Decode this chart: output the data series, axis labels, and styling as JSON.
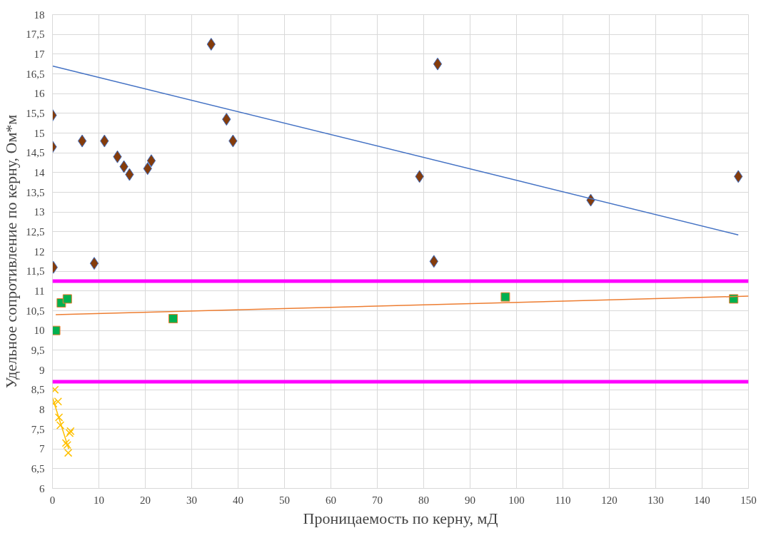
{
  "chart_data": {
    "type": "scatter",
    "xlabel": "Проницаемость по керну, мД",
    "ylabel": "Удельное сопротивление по керну, Ом*м",
    "xlim": [
      0,
      150
    ],
    "ylim": [
      6,
      18
    ],
    "xticks": [
      0,
      10,
      20,
      30,
      40,
      50,
      60,
      70,
      80,
      90,
      100,
      110,
      120,
      130,
      140,
      150
    ],
    "yticks": [
      6,
      {
        "value": 6.5,
        "label": "6,5"
      },
      7,
      {
        "value": 7.5,
        "label": "7,5"
      },
      8,
      {
        "value": 8.5,
        "label": "8,5"
      },
      9,
      {
        "value": 9.5,
        "label": "9,5"
      },
      10,
      {
        "value": 10.5,
        "label": "10,5"
      },
      11,
      {
        "value": 11.5,
        "label": "11,5"
      },
      12,
      {
        "value": 12.5,
        "label": "12,5"
      },
      13,
      {
        "value": 13.5,
        "label": "13,5"
      },
      14,
      {
        "value": 14.5,
        "label": "14,5"
      },
      15,
      {
        "value": 15.5,
        "label": "15,5"
      },
      16,
      {
        "value": 16.5,
        "label": "16,5"
      },
      17,
      {
        "value": 17.5,
        "label": "17,5"
      },
      18
    ],
    "grid": true,
    "ref_lines": [
      {
        "axis": "y",
        "value": 11.25,
        "color": "#ff00ff"
      },
      {
        "axis": "y",
        "value": 8.7,
        "color": "#ff00ff"
      }
    ],
    "series": [
      {
        "marker": "diamond",
        "color": "#843c0c",
        "x": [
          0,
          0,
          0.2,
          6.4,
          11.2,
          9,
          14,
          15.4,
          16.6,
          20.5,
          21.3,
          34.2,
          37.5,
          38.9,
          79.1,
          82.2,
          83,
          116,
          147.8
        ],
        "values": [
          15.45,
          14.65,
          11.6,
          14.8,
          14.8,
          11.7,
          14.4,
          14.15,
          13.95,
          14.1,
          14.3,
          17.25,
          15.35,
          14.8,
          13.9,
          11.75,
          16.75,
          13.3,
          13.9
        ]
      },
      {
        "type": "line",
        "marker": "none",
        "color": "#4472c4",
        "x": [
          0,
          147.8
        ],
        "values": [
          16.7,
          12.42
        ]
      },
      {
        "marker": "square",
        "color": "#00b050",
        "x": [
          0.7,
          1.9,
          3.2,
          26,
          97.6,
          146.8
        ],
        "values": [
          10.0,
          10.7,
          10.8,
          10.3,
          10.85,
          10.8
        ]
      },
      {
        "type": "line",
        "marker": "none",
        "color": "#ed7d31",
        "x": [
          0.7,
          150
        ],
        "values": [
          10.4,
          10.87
        ]
      },
      {
        "marker": "cross",
        "color": "#ffc000",
        "x": [
          0.5,
          0.2,
          1.2,
          1.4,
          1.7,
          3.7,
          2.9,
          3.2,
          3.4,
          3.9
        ],
        "values": [
          8.5,
          8.15,
          8.2,
          7.8,
          7.6,
          7.4,
          7.15,
          7.1,
          6.9,
          7.45
        ]
      },
      {
        "type": "line",
        "marker": "none",
        "color": "#ffc000",
        "x": [
          0,
          3.5
        ],
        "values": [
          8.3,
          7.0
        ]
      }
    ]
  }
}
